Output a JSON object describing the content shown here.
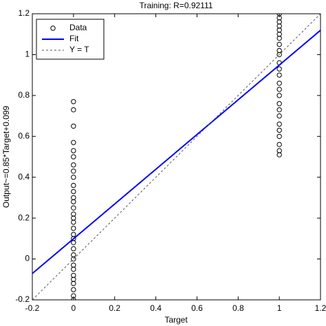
{
  "chart_data": {
    "type": "scatter",
    "title": "Training: R=0.92111",
    "x_label": "Target",
    "y_label": "Output~=0.85*Target+0.099",
    "xlim": [
      -0.2,
      1.2
    ],
    "ylim": [
      -0.2,
      1.2
    ],
    "xticks": [
      -0.2,
      0,
      0.2,
      0.4,
      0.6,
      0.8,
      1,
      1.2
    ],
    "yticks": [
      -0.2,
      0,
      0.2,
      0.4,
      0.6,
      0.8,
      1,
      1.2
    ],
    "legend": "northwest",
    "series": [
      {
        "name": "Data",
        "kind": "markers",
        "color": "#000000",
        "x": [
          0,
          0,
          0,
          0,
          0,
          0,
          0,
          0,
          0,
          0,
          0,
          0,
          0,
          0,
          0,
          0,
          0,
          0,
          0,
          0,
          0,
          0,
          0,
          0,
          0,
          0,
          0,
          0,
          0,
          0,
          0,
          0,
          1,
          1,
          1,
          1,
          1,
          1,
          1,
          1,
          1,
          1,
          1,
          1,
          1,
          1,
          1,
          1,
          1,
          1,
          1,
          1,
          1,
          1,
          1,
          1,
          1,
          1
        ],
        "values": [
          -0.2,
          -0.18,
          -0.15,
          -0.12,
          -0.1,
          -0.08,
          -0.05,
          -0.03,
          0,
          0.02,
          0.05,
          0.08,
          0.1,
          0.12,
          0.15,
          0.18,
          0.2,
          0.22,
          0.25,
          0.28,
          0.3,
          0.33,
          0.36,
          0.4,
          0.43,
          0.46,
          0.5,
          0.53,
          0.57,
          0.65,
          0.73,
          0.77,
          0.51,
          0.53,
          0.56,
          0.6,
          0.63,
          0.66,
          0.7,
          0.73,
          0.76,
          0.8,
          0.83,
          0.86,
          0.9,
          0.93,
          0.96,
          1,
          1.02,
          1.05,
          1.08,
          1.1,
          1.12,
          1.14,
          1.16,
          1.18,
          1.2,
          1.21
        ]
      },
      {
        "name": "Fit",
        "kind": "line",
        "color": "#0000ff",
        "dash": "solid",
        "x": [
          -0.2,
          1.2
        ],
        "values": [
          -0.071,
          1.119
        ]
      },
      {
        "name": "Y = T",
        "kind": "line",
        "color": "#555555",
        "dash": "dashed",
        "x": [
          -0.2,
          1.2
        ],
        "values": [
          -0.2,
          1.2
        ]
      }
    ]
  }
}
